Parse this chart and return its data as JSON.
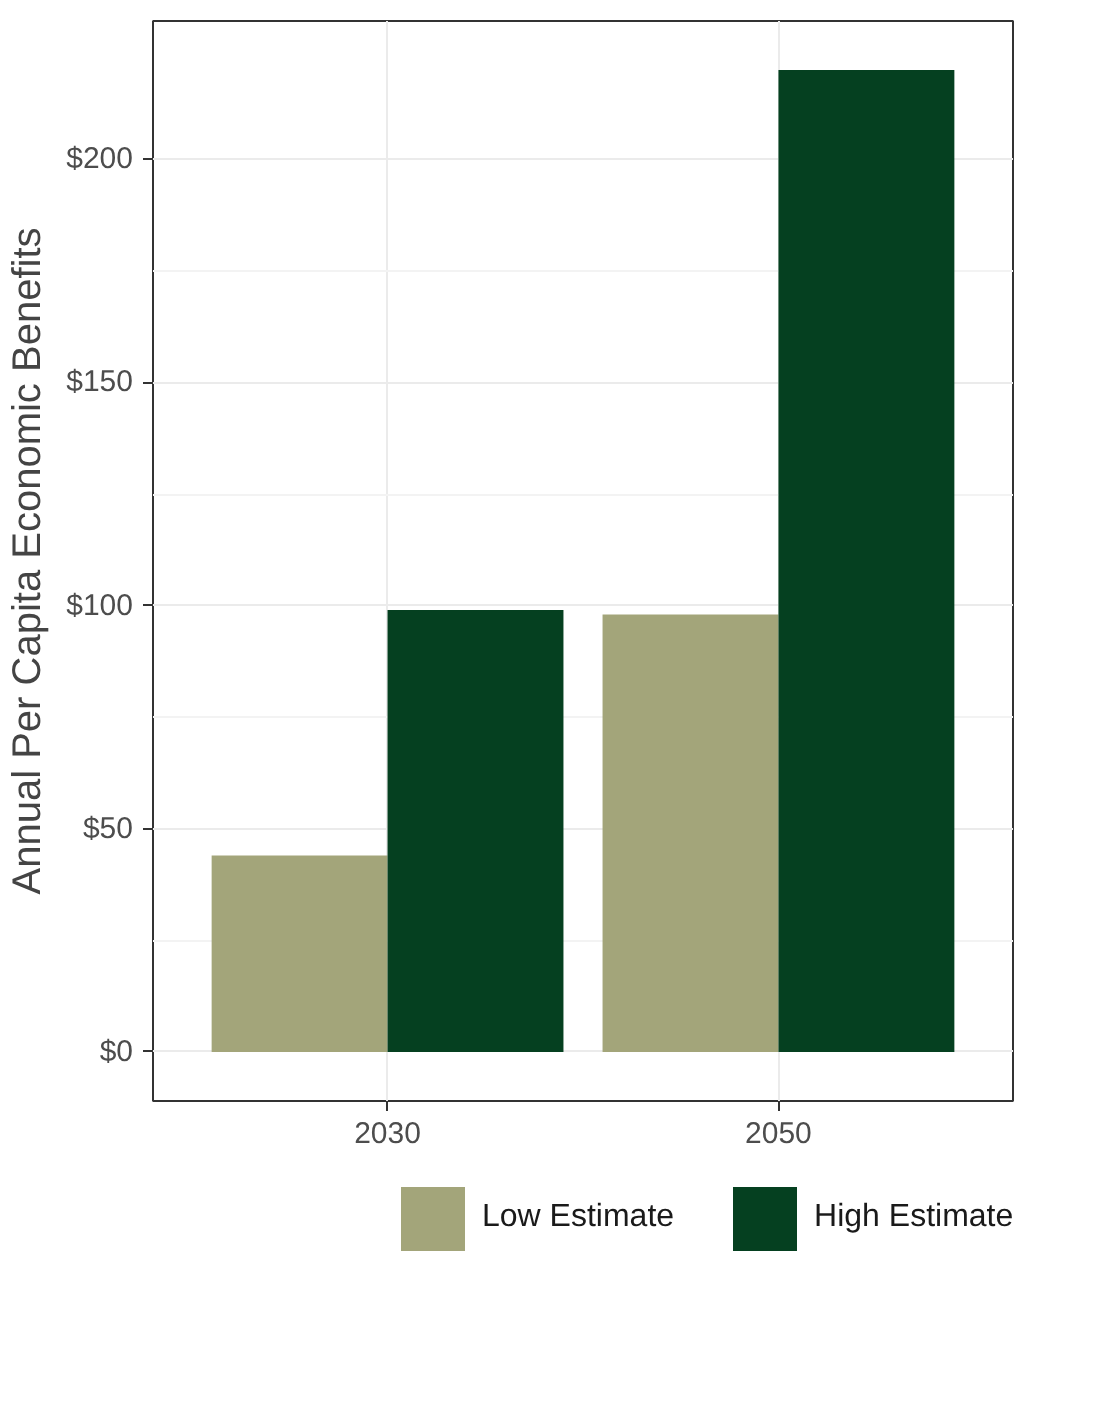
{
  "chart_data": {
    "type": "bar",
    "ylabel": "Annual Per Capita Economic Benefits",
    "categories": [
      "2030",
      "2050"
    ],
    "series": [
      {
        "name": "Low Estimate",
        "color": "#a3a57a",
        "values": [
          44,
          98
        ]
      },
      {
        "name": "High Estimate",
        "color": "#054020",
        "values": [
          99,
          220
        ]
      }
    ],
    "ylim": [
      -11,
      231
    ],
    "yticks": [
      {
        "value": 0,
        "label": "$0"
      },
      {
        "value": 50,
        "label": "$50"
      },
      {
        "value": 100,
        "label": "$100"
      },
      {
        "value": 150,
        "label": "$150"
      },
      {
        "value": 200,
        "label": "$200"
      }
    ],
    "grid": true,
    "legend": "bottom"
  }
}
